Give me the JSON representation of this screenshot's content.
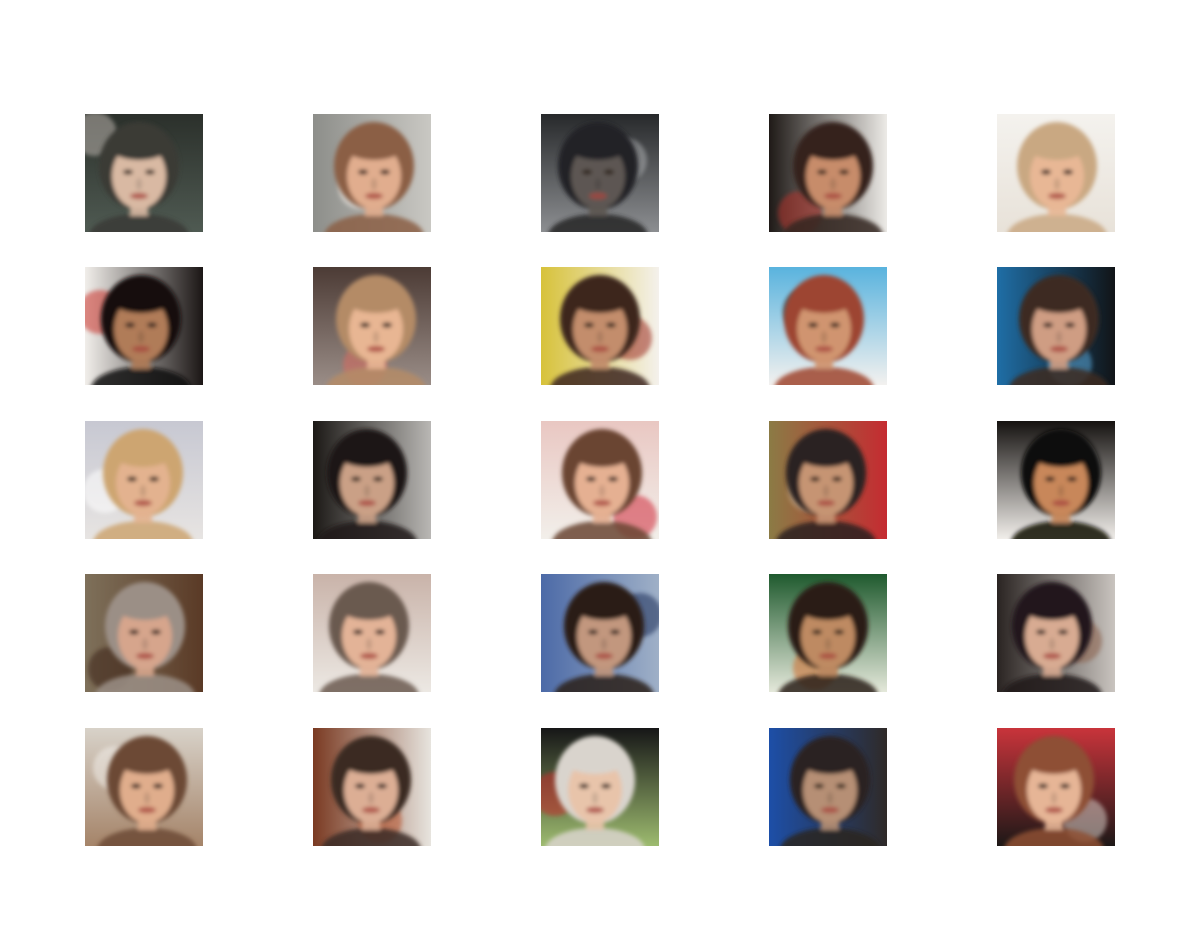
{
  "figure": {
    "rows": 5,
    "cols": 5,
    "tiles": [
      {
        "bg": "#2b302b",
        "bg2": "#4f5a52",
        "skin": "#d9b9a3",
        "hair": "#3a3a36",
        "accent": "#b9b2ac"
      },
      {
        "bg": "#8d8e8a",
        "bg2": "#c9c8c3",
        "skin": "#e1ad8e",
        "hair": "#8b5f45",
        "accent": "#f2eee9"
      },
      {
        "bg": "#27292b",
        "bg2": "#8c8e91",
        "skin": "#5d5752",
        "hair": "#232426",
        "accent": "#a9abad"
      },
      {
        "bg": "#1f1a17",
        "bg2": "#eceae6",
        "skin": "#c78c6a",
        "hair": "#34241c",
        "accent": "#b2302a"
      },
      {
        "bg": "#f4f2ee",
        "bg2": "#e8e2d9",
        "skin": "#e8b795",
        "hair": "#c9a882",
        "accent": "#ffffff"
      },
      {
        "bg": "#f1eeea",
        "bg2": "#1b1615",
        "skin": "#b07c58",
        "hair": "#120d0c",
        "accent": "#c9322c"
      },
      {
        "bg": "#4c3b35",
        "bg2": "#9a8d87",
        "skin": "#e8b693",
        "hair": "#b48b66",
        "accent": "#d96b5e"
      },
      {
        "bg": "#d7c23a",
        "bg2": "#f4f1ec",
        "skin": "#c38d6c",
        "hair": "#3c271e",
        "accent": "#9b2a22"
      },
      {
        "bg": "#59b3de",
        "bg2": "#f3f1ef",
        "skin": "#d0946f",
        "hair": "#9d4530",
        "accent": "#1a1210"
      },
      {
        "bg": "#1f6ea6",
        "bg2": "#111417",
        "skin": "#cf9d83",
        "hair": "#3d2a22",
        "accent": "#5aa6d6"
      },
      {
        "bg": "#c7c8d2",
        "bg2": "#e7e4e2",
        "skin": "#e3b28f",
        "hair": "#cda571",
        "accent": "#ffffff"
      },
      {
        "bg": "#1c1916",
        "bg2": "#b9b7b4",
        "skin": "#caa086",
        "hair": "#1d1815",
        "accent": "#e9e7e4"
      },
      {
        "bg": "#e9c7c2",
        "bg2": "#f2efea",
        "skin": "#e5b092",
        "hair": "#6a4431",
        "accent": "#d02a3a"
      },
      {
        "bg": "#8b7b45",
        "bg2": "#c52b31",
        "skin": "#c69473",
        "hair": "#2c2222",
        "accent": "#d9c4a6"
      },
      {
        "bg": "#151210",
        "bg2": "#f1eeea",
        "skin": "#c8875a",
        "hair": "#0b0907",
        "accent": "#fafafa"
      },
      {
        "bg": "#7e705a",
        "bg2": "#5a3a26",
        "skin": "#d6a58c",
        "hair": "#9b8f86",
        "accent": "#3a2418"
      },
      {
        "bg": "#c9b3a9",
        "bg2": "#ece8e3",
        "skin": "#e3b397",
        "hair": "#6b5a4f",
        "accent": "#d2a7ab"
      },
      {
        "bg": "#4c6aa7",
        "bg2": "#9fb0c7",
        "skin": "#c2977e",
        "hair": "#2b1e19",
        "accent": "#1d2f59"
      },
      {
        "bg": "#1f5a2e",
        "bg2": "#e4e8da",
        "skin": "#be8a62",
        "hair": "#2b1c14",
        "accent": "#d06a2a"
      },
      {
        "bg": "#2a2422",
        "bg2": "#c9c4bf",
        "skin": "#d8ab92",
        "hair": "#20191a",
        "accent": "#8b5f4a"
      },
      {
        "bg": "#d8d2c9",
        "bg2": "#a58469",
        "skin": "#e0ad8c",
        "hair": "#6c4a35",
        "accent": "#f0ece7"
      },
      {
        "bg": "#7a3a22",
        "bg2": "#e7e4de",
        "skin": "#dcae94",
        "hair": "#3b2b23",
        "accent": "#b8512b"
      },
      {
        "bg": "#161617",
        "bg2": "#9dbb6f",
        "skin": "#e8c4aa",
        "hair": "#d9d4cd",
        "accent": "#c52b2a"
      },
      {
        "bg": "#1d4fa8",
        "bg2": "#2f2a28",
        "skin": "#b68f74",
        "hair": "#2c2420",
        "accent": "#6e9bd4"
      },
      {
        "bg": "#c9343b",
        "bg2": "#1d1817",
        "skin": "#e6b596",
        "hair": "#8e4f34",
        "accent": "#d8cfc8"
      }
    ]
  }
}
